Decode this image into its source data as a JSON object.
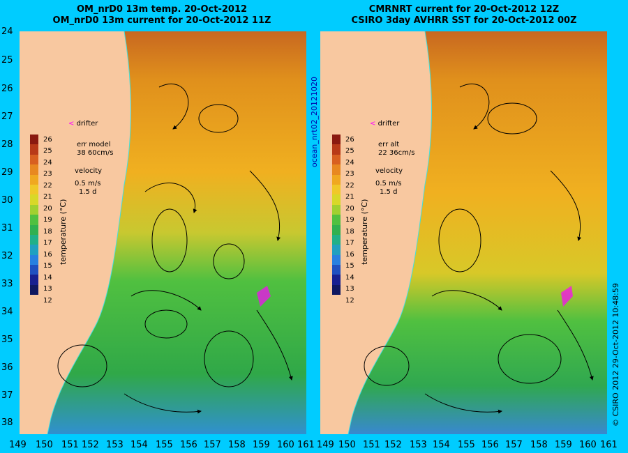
{
  "left": {
    "title1": "OM_nrD0 13m temp. 20-Oct-2012",
    "title2": "OM_nrD0 13m current for 20-Oct-2012 11Z",
    "err_label": "err model",
    "err_value": "38 60cm/s"
  },
  "right": {
    "title1": "CMRNRT current for 20-Oct-2012 12Z",
    "title2": "CSIRO 3day AVHRR SST for 20-Oct-2012 00Z",
    "err_label": "err alt",
    "err_value": "22 36cm/s"
  },
  "legend": {
    "drifter": "drifter",
    "velocity": "velocity",
    "speed": "0.5 m/s",
    "duration": "1.5 d",
    "cbar_title": "temperature (°C)",
    "cbar_ticks": [
      "26",
      "25",
      "24",
      "23",
      "22",
      "21",
      "20",
      "19",
      "18",
      "17",
      "16",
      "15",
      "14",
      "13",
      "12"
    ]
  },
  "y_ticks": [
    "24",
    "25",
    "26",
    "27",
    "28",
    "29",
    "30",
    "31",
    "32",
    "33",
    "34",
    "35",
    "36",
    "37",
    "38"
  ],
  "x_ticks": [
    "149",
    "150",
    "151",
    "152",
    "153",
    "154",
    "155",
    "156",
    "157",
    "158",
    "159",
    "160",
    "161"
  ],
  "middle_label": "ocean_nrt02_20121020",
  "side_label": "© CSIRO 2012   29-Oct-2012 10:48:59",
  "colors": {
    "background": "#00ccff",
    "land": "#f8c8a0",
    "warm": "#c86820",
    "mid": "#f0b020",
    "cool": "#30b040",
    "cold": "#3080d0",
    "drifter": "#ff00ff"
  }
}
